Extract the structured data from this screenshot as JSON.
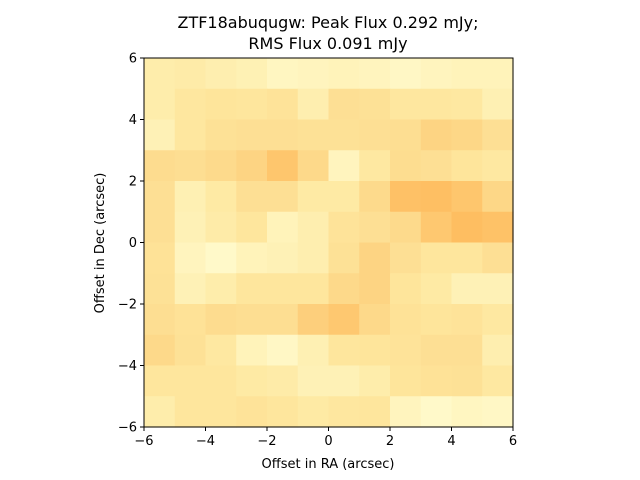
{
  "chart_data": {
    "type": "heatmap",
    "title_line1": "ZTF18abuqugw: Peak Flux 0.292 mJy;",
    "title_line2": "RMS Flux 0.091 mJy",
    "xlabel": "Offset in RA (arcsec)",
    "ylabel": "Offset in Dec (arcsec)",
    "xlim": [
      -6,
      6
    ],
    "ylim": [
      -6,
      6
    ],
    "xticks": [
      "-6",
      "-4",
      "-2",
      "0",
      "2",
      "4",
      "6"
    ],
    "yticks": [
      "-6",
      "-4",
      "-2",
      "0",
      "2",
      "4",
      "6"
    ],
    "grid": false,
    "colormap": [
      "#fffcd0",
      "#fee9a2",
      "#fdd98a",
      "#fec166",
      "#fdb04f"
    ],
    "rows_top_to_bottom": [
      [
        0.2,
        0.22,
        0.18,
        0.15,
        0.08,
        0.1,
        0.12,
        0.1,
        0.06,
        0.1,
        0.12,
        0.12
      ],
      [
        0.2,
        0.28,
        0.32,
        0.3,
        0.34,
        0.18,
        0.4,
        0.38,
        0.28,
        0.28,
        0.26,
        0.16
      ],
      [
        0.14,
        0.28,
        0.38,
        0.4,
        0.4,
        0.38,
        0.38,
        0.4,
        0.42,
        0.55,
        0.52,
        0.4
      ],
      [
        0.45,
        0.42,
        0.48,
        0.55,
        0.7,
        0.5,
        0.1,
        0.26,
        0.44,
        0.4,
        0.32,
        0.26
      ],
      [
        0.4,
        0.16,
        0.24,
        0.4,
        0.4,
        0.24,
        0.24,
        0.48,
        0.75,
        0.78,
        0.7,
        0.52
      ],
      [
        0.4,
        0.14,
        0.22,
        0.3,
        0.12,
        0.18,
        0.34,
        0.4,
        0.48,
        0.68,
        0.8,
        0.74
      ],
      [
        0.36,
        0.1,
        0.04,
        0.12,
        0.14,
        0.18,
        0.38,
        0.55,
        0.4,
        0.3,
        0.3,
        0.4
      ],
      [
        0.38,
        0.14,
        0.2,
        0.3,
        0.3,
        0.3,
        0.5,
        0.55,
        0.32,
        0.24,
        0.14,
        0.14
      ],
      [
        0.42,
        0.36,
        0.45,
        0.42,
        0.42,
        0.6,
        0.68,
        0.5,
        0.36,
        0.32,
        0.34,
        0.26
      ],
      [
        0.5,
        0.38,
        0.26,
        0.12,
        0.06,
        0.16,
        0.3,
        0.32,
        0.34,
        0.4,
        0.4,
        0.18
      ],
      [
        0.3,
        0.3,
        0.3,
        0.24,
        0.22,
        0.14,
        0.14,
        0.2,
        0.32,
        0.36,
        0.38,
        0.26
      ],
      [
        0.2,
        0.3,
        0.3,
        0.34,
        0.3,
        0.24,
        0.28,
        0.3,
        0.1,
        0.04,
        0.08,
        0.06
      ]
    ]
  }
}
